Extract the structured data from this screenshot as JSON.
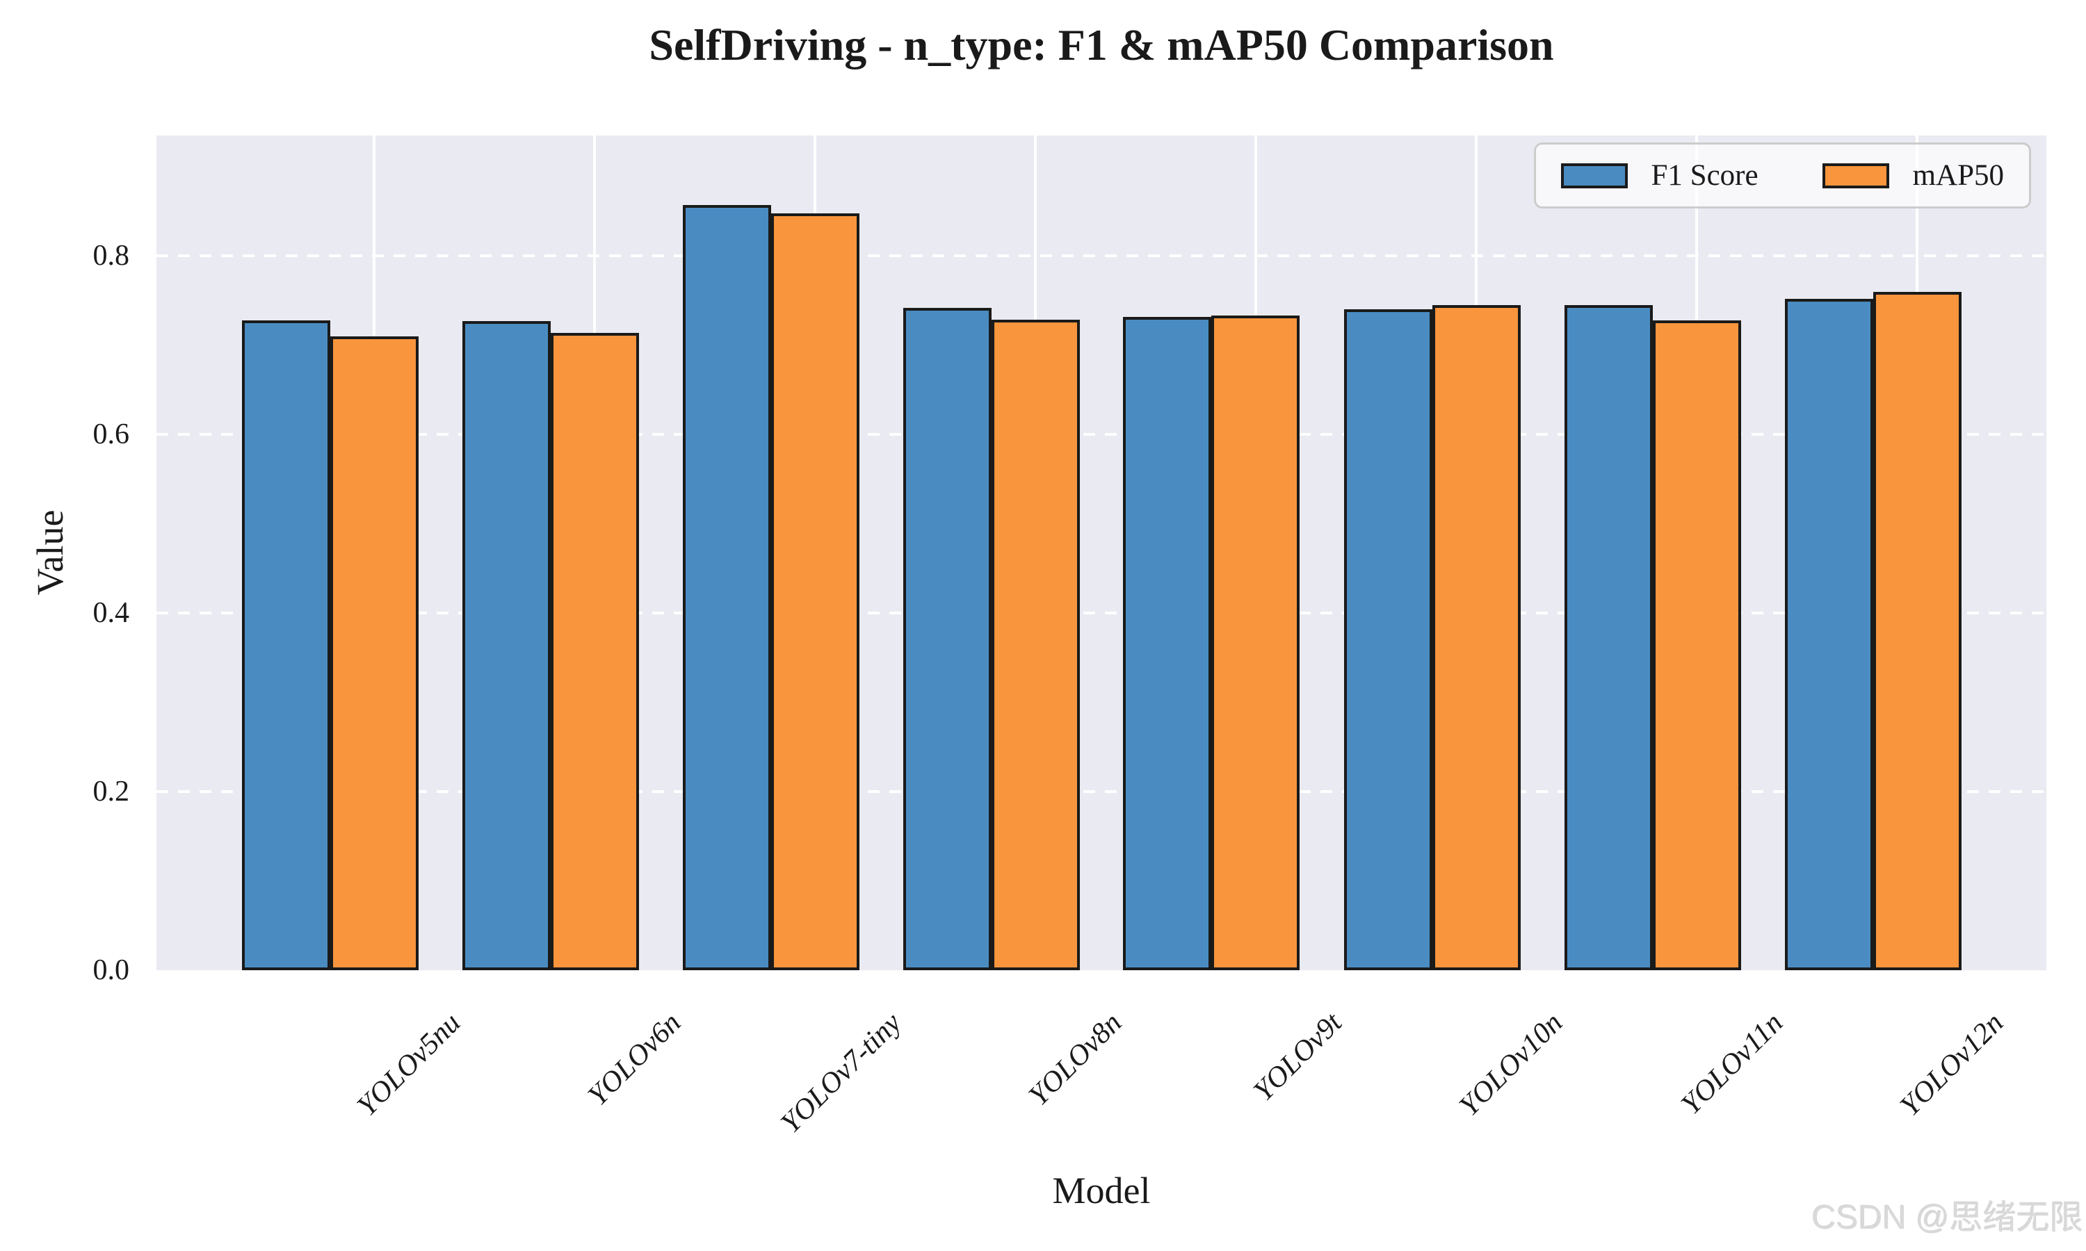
{
  "chart": {
    "watermark": "CSDN @思绪无限"
  },
  "chart_data": {
    "type": "bar",
    "title": "SelfDriving - n_type: F1 & mAP50 Comparison",
    "xlabel": "Model",
    "ylabel": "Value",
    "categories": [
      "YOLOv5nu",
      "YOLOv6n",
      "YOLOv7-tiny",
      "YOLOv8n",
      "YOLOv9t",
      "YOLOv10n",
      "YOLOv11n",
      "YOLOv12n"
    ],
    "series": [
      {
        "name": "F1 Score",
        "color": "#4a8cc2",
        "values": [
          0.728,
          0.727,
          0.857,
          0.742,
          0.732,
          0.74,
          0.745,
          0.752
        ]
      },
      {
        "name": "mAP50",
        "color": "#f8953d",
        "values": [
          0.71,
          0.714,
          0.848,
          0.729,
          0.733,
          0.745,
          0.728,
          0.76
        ]
      }
    ],
    "ylim": [
      0,
      0.935
    ],
    "yticks": [
      0.0,
      0.2,
      0.4,
      0.6,
      0.8
    ],
    "ytick_labels": [
      "0.0",
      "0.2",
      "0.4",
      "0.6",
      "0.8"
    ],
    "grid": true,
    "grid_style": "horizontal-dashed-vertical-solid-white",
    "legend_position": "upper right",
    "plot_bg_color": "#eaeaf2",
    "bar_edge_color": "#1a1a1a"
  }
}
